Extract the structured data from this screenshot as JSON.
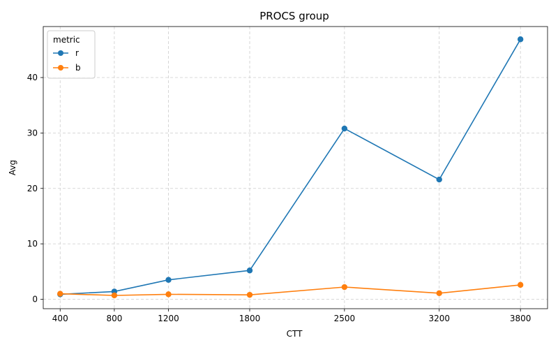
{
  "chart_data": {
    "type": "line",
    "title": "PROCS group",
    "xlabel": "CTT",
    "ylabel": "Avg",
    "x": [
      400,
      800,
      1200,
      1800,
      2500,
      3200,
      3800
    ],
    "xticks": [
      "400",
      "800",
      "1200",
      "1800",
      "2500",
      "3200",
      "3800"
    ],
    "xlim": [
      275,
      4000
    ],
    "yticks": [
      0,
      10,
      20,
      30,
      40
    ],
    "ylim": [
      -1.7,
      49.2
    ],
    "grid": true,
    "legend": {
      "title": "metric",
      "position": "top-left"
    },
    "series": [
      {
        "name": "r",
        "color": "#1f77b4",
        "values": [
          0.9,
          1.4,
          3.5,
          5.2,
          30.8,
          21.6,
          46.9
        ]
      },
      {
        "name": "b",
        "color": "#ff7f0e",
        "values": [
          1.0,
          0.7,
          0.9,
          0.8,
          2.2,
          1.1,
          2.6
        ]
      }
    ]
  }
}
